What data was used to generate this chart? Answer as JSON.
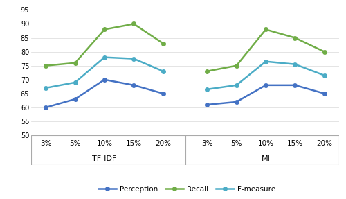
{
  "tfidf_labels": [
    "3%",
    "5%",
    "10%",
    "15%",
    "20%"
  ],
  "mi_labels": [
    "3%",
    "5%",
    "10%",
    "15%",
    "20%"
  ],
  "tfidf_perception": [
    60,
    63,
    70,
    68,
    65
  ],
  "tfidf_recall": [
    75,
    76,
    88,
    90,
    83
  ],
  "tfidf_fmeasure": [
    67,
    69,
    78,
    77.5,
    73
  ],
  "mi_perception": [
    61,
    62,
    68,
    68,
    65
  ],
  "mi_recall": [
    73,
    75,
    88,
    85,
    80
  ],
  "mi_fmeasure": [
    66.5,
    68,
    76.5,
    75.5,
    71.5
  ],
  "perception_color": "#4472C4",
  "recall_color": "#70AD47",
  "fmeasure_color": "#4BACC6",
  "ylim_main": [
    50,
    95
  ],
  "yticks": [
    50,
    55,
    60,
    65,
    70,
    75,
    80,
    85,
    90,
    95
  ],
  "group_labels": [
    "TF-IDF",
    "MI"
  ],
  "legend_labels": [
    "Perception",
    "Recall",
    "F-measure"
  ],
  "background_color": "#FFFFFF",
  "grid_color": "#D9D9D9",
  "box_color": "#D9D9D9"
}
